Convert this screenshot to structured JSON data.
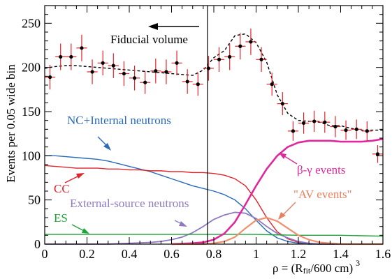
{
  "chart_data": {
    "type": "line",
    "xlabel": "ρ = (R",
    "xlabel_sub": "fit",
    "xlabel_tail": "/600 cm)",
    "xlabel_sup": "3",
    "ylabel": "Events per 0.05 wide bin",
    "xlim": [
      0,
      1.6
    ],
    "ylim": [
      0,
      270
    ],
    "x_ticks": [
      0,
      0.2,
      0.4,
      0.6,
      0.8,
      1,
      1.2,
      1.4,
      1.6
    ],
    "x_tick_labels": [
      "0",
      "0.2",
      "0.4",
      "0.6",
      "0.8",
      "1",
      "1.2",
      "1.4",
      "1.6"
    ],
    "y_ticks": [
      0,
      50,
      100,
      150,
      200,
      250
    ],
    "y_tick_labels": [
      "0",
      "50",
      "100",
      "150",
      "200",
      "250"
    ],
    "x_minor_step": 0.05,
    "y_minor_step": 10,
    "grid": false,
    "fiducial_cut": 0.77,
    "annotations": {
      "fiducial": "Fiducial volume",
      "nc": "NC+Internal neutrons",
      "cc": "CC",
      "ext": "External-source neutrons",
      "es": "ES",
      "bg": "β-γ events",
      "av": "\"AV events\""
    },
    "colors": {
      "data": "#e8232a",
      "total": "#000000",
      "nc": "#2a6ab8",
      "cc": "#e0242c",
      "ext": "#8f7ac0",
      "es": "#20a43a",
      "bg": "#e0289c",
      "av": "#ee9070",
      "axis": "#000000"
    },
    "data_points": {
      "x": [
        0.025,
        0.075,
        0.125,
        0.175,
        0.225,
        0.275,
        0.325,
        0.375,
        0.425,
        0.475,
        0.525,
        0.575,
        0.625,
        0.675,
        0.725,
        0.775,
        0.825,
        0.875,
        0.925,
        0.975,
        1.025,
        1.075,
        1.125,
        1.175,
        1.225,
        1.275,
        1.325,
        1.375,
        1.425,
        1.475,
        1.525,
        1.575
      ],
      "y": [
        189,
        212,
        212,
        222,
        195,
        205,
        202,
        193,
        188,
        183,
        196,
        195,
        205,
        184,
        181,
        199,
        209,
        212,
        224,
        229,
        209,
        181,
        159,
        128,
        137,
        139,
        138,
        133,
        129,
        130,
        128,
        102
      ],
      "err": [
        14,
        15,
        15,
        15,
        14,
        14,
        14,
        14,
        14,
        13,
        14,
        14,
        14,
        14,
        13,
        14,
        14,
        15,
        15,
        15,
        14,
        13,
        13,
        11,
        12,
        12,
        12,
        12,
        11,
        11,
        11,
        10
      ]
    },
    "series": [
      {
        "name": "total",
        "x": [
          0,
          0.05,
          0.1,
          0.15,
          0.2,
          0.25,
          0.3,
          0.35,
          0.4,
          0.45,
          0.5,
          0.55,
          0.6,
          0.65,
          0.7,
          0.75,
          0.8,
          0.85,
          0.9,
          0.95,
          1,
          1.05,
          1.1,
          1.15,
          1.2,
          1.25,
          1.3,
          1.35,
          1.4,
          1.45,
          1.5,
          1.55,
          1.6
        ],
        "y": [
          199,
          201,
          202,
          202,
          201,
          200,
          199,
          198,
          197,
          196,
          195,
          194,
          193,
          192,
          191,
          197,
          211,
          219,
          236,
          238,
          228,
          206,
          169,
          148,
          140,
          139,
          138,
          134,
          134,
          131,
          129,
          129,
          129
        ]
      },
      {
        "name": "NC+Internal neutrons",
        "x": [
          0,
          0.05,
          0.1,
          0.15,
          0.2,
          0.25,
          0.3,
          0.35,
          0.4,
          0.45,
          0.5,
          0.55,
          0.6,
          0.65,
          0.7,
          0.75,
          0.8,
          0.85,
          0.9,
          0.95,
          1,
          1.05,
          1.1,
          1.15,
          1.2,
          1.25,
          1.3,
          1.35,
          1.4,
          1.45,
          1.5,
          1.55,
          1.6
        ],
        "y": [
          100,
          100,
          99,
          98,
          97,
          96,
          94,
          91,
          88,
          85,
          82,
          78,
          74,
          70,
          66,
          63,
          60,
          56,
          50,
          40,
          27,
          15,
          7,
          3,
          1,
          0,
          0,
          0,
          0,
          0,
          0,
          0,
          0
        ]
      },
      {
        "name": "CC",
        "x": [
          0,
          0.05,
          0.1,
          0.15,
          0.2,
          0.25,
          0.3,
          0.35,
          0.4,
          0.45,
          0.5,
          0.55,
          0.6,
          0.65,
          0.7,
          0.75,
          0.8,
          0.85,
          0.9,
          0.95,
          1,
          1.05,
          1.1,
          1.15,
          1.2,
          1.25,
          1.3,
          1.35,
          1.4,
          1.45,
          1.5,
          1.55,
          1.6
        ],
        "y": [
          89,
          88,
          87,
          86,
          86,
          86,
          85,
          85,
          84,
          84,
          83,
          83,
          82,
          82,
          81,
          81,
          80,
          78,
          74,
          66,
          50,
          30,
          14,
          6,
          2,
          1,
          0,
          0,
          0,
          0,
          0,
          0,
          0
        ]
      },
      {
        "name": "External-source neutrons",
        "x": [
          0,
          0.05,
          0.1,
          0.15,
          0.2,
          0.25,
          0.3,
          0.35,
          0.4,
          0.45,
          0.5,
          0.55,
          0.6,
          0.65,
          0.7,
          0.75,
          0.8,
          0.85,
          0.9,
          0.95,
          1,
          1.05,
          1.1,
          1.15,
          1.2,
          1.25,
          1.3,
          1.35,
          1.4,
          1.45,
          1.5,
          1.55,
          1.6
        ],
        "y": [
          0,
          0,
          0,
          0,
          0,
          0,
          0,
          0.5,
          1,
          1.5,
          2,
          3,
          5,
          8,
          13,
          20,
          28,
          33,
          36,
          35,
          29,
          20,
          12,
          7,
          3,
          1,
          0,
          0,
          0,
          0,
          0,
          0,
          0
        ]
      },
      {
        "name": "ES",
        "x": [
          0,
          0.2,
          0.4,
          0.6,
          0.8,
          1,
          1.2,
          1.4,
          1.6
        ],
        "y": [
          11,
          11,
          11,
          11,
          11,
          11,
          10,
          10,
          9
        ]
      },
      {
        "name": "β-γ events",
        "x": [
          0.6,
          0.7,
          0.75,
          0.8,
          0.85,
          0.9,
          0.95,
          1,
          1.05,
          1.1,
          1.15,
          1.2,
          1.25,
          1.3,
          1.35,
          1.4,
          1.45,
          1.5,
          1.55,
          1.6
        ],
        "y": [
          0,
          1,
          2,
          5,
          12,
          25,
          45,
          66,
          85,
          100,
          110,
          115,
          117,
          117,
          117,
          116,
          116,
          116,
          117,
          119
        ]
      },
      {
        "name": "AV events",
        "x": [
          0.6,
          0.7,
          0.75,
          0.8,
          0.85,
          0.9,
          0.95,
          1,
          1.05,
          1.1,
          1.15,
          1.2,
          1.25,
          1.3,
          1.35,
          1.4,
          1.45,
          1.5,
          1.55,
          1.6
        ],
        "y": [
          0,
          0,
          0,
          1,
          3,
          8,
          18,
          27,
          30,
          26,
          18,
          10,
          5,
          2,
          1,
          0,
          0,
          0,
          0,
          0
        ]
      }
    ]
  }
}
